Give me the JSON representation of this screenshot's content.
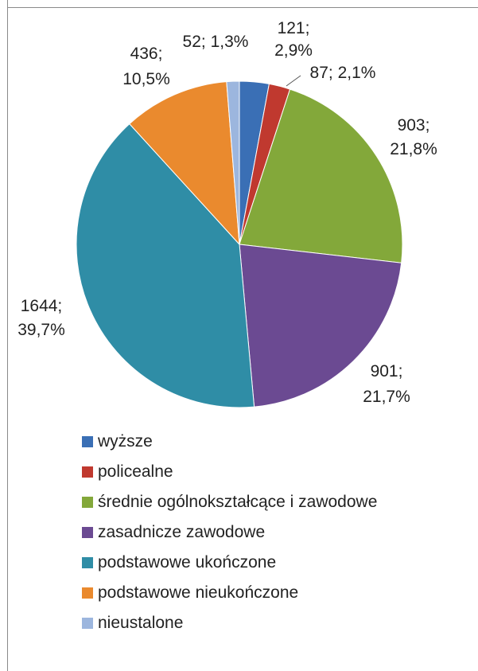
{
  "chart_data": {
    "type": "pie",
    "title": "",
    "legend_position": "bottom",
    "slices": [
      {
        "name": "wyższe",
        "value": 121,
        "percent_label": "2,9%",
        "color": "#3a6fb5"
      },
      {
        "name": "policealne",
        "value": 87,
        "percent_label": "2,1%",
        "color": "#c0392f"
      },
      {
        "name": "średnie ogólnokształcące i zawodowe",
        "value": 903,
        "percent_label": "21,8%",
        "color": "#83a83a"
      },
      {
        "name": "zasadnicze zawodowe",
        "value": 901,
        "percent_label": "21,7%",
        "color": "#6b4a92"
      },
      {
        "name": "podstawowe ukończone",
        "value": 1644,
        "percent_label": "39,7%",
        "color": "#2f8da6"
      },
      {
        "name": "podstawowe nieukończone",
        "value": 436,
        "percent_label": "10,5%",
        "color": "#ea8a2e"
      },
      {
        "name": "nieustalone",
        "value": 52,
        "percent_label": "1,3%",
        "color": "#9cb6de"
      }
    ]
  }
}
